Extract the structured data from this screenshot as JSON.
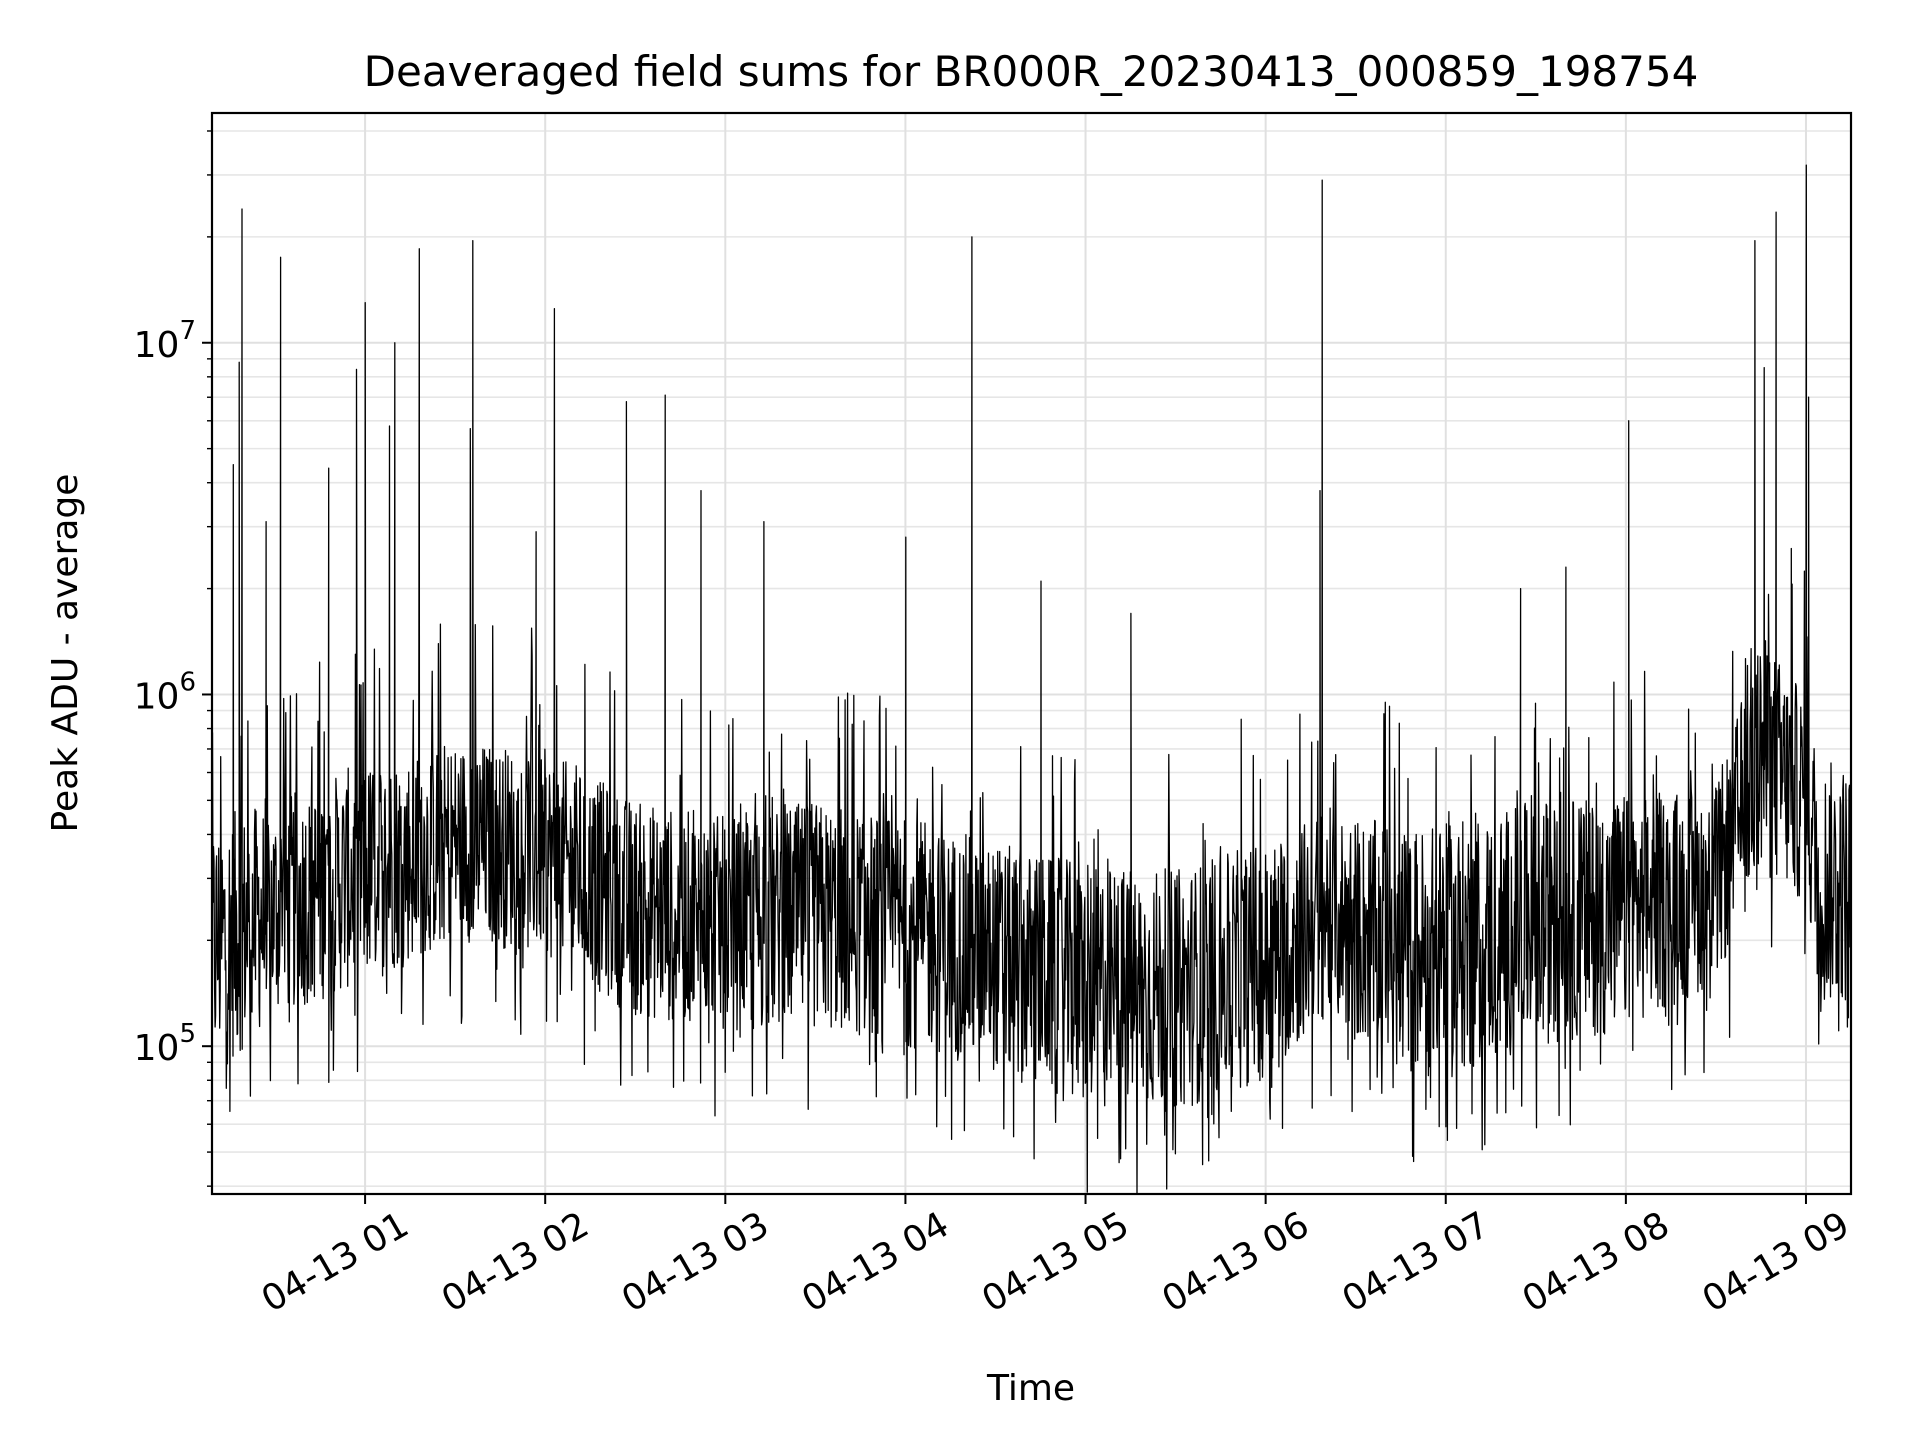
{
  "chart_data": {
    "type": "line",
    "title": "Deaveraged field sums for BR000R_20230413_000859_198754",
    "xlabel": "Time",
    "ylabel": "Peak ADU - average",
    "x_range": [
      "2023-04-13 00:09",
      "2023-04-13 09:15"
    ],
    "y_scale": "log",
    "ylim": [
      38000,
      45000000
    ],
    "grid": true,
    "x_ticks": [
      "04-13 01",
      "04-13 02",
      "04-13 03",
      "04-13 04",
      "04-13 05",
      "04-13 06",
      "04-13 07",
      "04-13 08",
      "04-13 09"
    ],
    "y_ticks": [
      {
        "value": 100000,
        "base": "10",
        "exp": "5"
      },
      {
        "value": 1000000,
        "base": "10",
        "exp": "6"
      },
      {
        "value": 10000000,
        "base": "10",
        "exp": "7"
      }
    ],
    "line_color": "#000000",
    "envelope": [
      {
        "time": "2023-04-13 00:09",
        "low": 80000,
        "high": 450000
      },
      {
        "time": "2023-04-13 00:30",
        "low": 120000,
        "high": 500000
      },
      {
        "time": "2023-04-13 01:00",
        "low": 150000,
        "high": 650000
      },
      {
        "time": "2023-04-13 01:30",
        "low": 200000,
        "high": 750000
      },
      {
        "time": "2023-04-13 02:00",
        "low": 180000,
        "high": 700000
      },
      {
        "time": "2023-04-13 02:30",
        "low": 120000,
        "high": 500000
      },
      {
        "time": "2023-04-13 03:00",
        "low": 110000,
        "high": 450000
      },
      {
        "time": "2023-04-13 03:30",
        "low": 110000,
        "high": 500000
      },
      {
        "time": "2023-04-13 04:00",
        "low": 100000,
        "high": 450000
      },
      {
        "time": "2023-04-13 04:30",
        "low": 85000,
        "high": 380000
      },
      {
        "time": "2023-04-13 05:00",
        "low": 65000,
        "high": 330000
      },
      {
        "time": "2023-04-13 05:30",
        "low": 65000,
        "high": 320000
      },
      {
        "time": "2023-04-13 06:00",
        "low": 80000,
        "high": 380000
      },
      {
        "time": "2023-04-13 06:20",
        "low": 120000,
        "high": 480000
      },
      {
        "time": "2023-04-13 06:45",
        "low": 85000,
        "high": 420000
      },
      {
        "time": "2023-04-13 07:00",
        "low": 80000,
        "high": 430000
      },
      {
        "time": "2023-04-13 07:30",
        "low": 100000,
        "high": 500000
      },
      {
        "time": "2023-04-13 08:00",
        "low": 110000,
        "high": 520000
      },
      {
        "time": "2023-04-13 08:30",
        "low": 150000,
        "high": 550000
      },
      {
        "time": "2023-04-13 08:45",
        "low": 300000,
        "high": 1500000
      },
      {
        "time": "2023-04-13 09:00",
        "low": 250000,
        "high": 1000000
      },
      {
        "time": "2023-04-13 09:05",
        "low": 130000,
        "high": 650000
      },
      {
        "time": "2023-04-13 09:15",
        "low": 130000,
        "high": 650000
      }
    ],
    "spikes": [
      {
        "time": "2023-04-13 00:16",
        "value": 4500000
      },
      {
        "time": "2023-04-13 00:18",
        "value": 8800000
      },
      {
        "time": "2023-04-13 00:19",
        "value": 24000000
      },
      {
        "time": "2023-04-13 00:27",
        "value": 3100000
      },
      {
        "time": "2023-04-13 00:32",
        "value": 17500000
      },
      {
        "time": "2023-04-13 00:48",
        "value": 4400000
      },
      {
        "time": "2023-04-13 00:57",
        "value": 8400000
      },
      {
        "time": "2023-04-13 01:00",
        "value": 13000000
      },
      {
        "time": "2023-04-13 01:08",
        "value": 5800000
      },
      {
        "time": "2023-04-13 01:10",
        "value": 10000000
      },
      {
        "time": "2023-04-13 01:18",
        "value": 18500000
      },
      {
        "time": "2023-04-13 01:35",
        "value": 5700000
      },
      {
        "time": "2023-04-13 01:36",
        "value": 19500000
      },
      {
        "time": "2023-04-13 01:57",
        "value": 2900000
      },
      {
        "time": "2023-04-13 02:03",
        "value": 12500000
      },
      {
        "time": "2023-04-13 02:27",
        "value": 6800000
      },
      {
        "time": "2023-04-13 02:40",
        "value": 7100000
      },
      {
        "time": "2023-04-13 02:52",
        "value": 3800000
      },
      {
        "time": "2023-04-13 03:13",
        "value": 3100000
      },
      {
        "time": "2023-04-13 04:00",
        "value": 2800000
      },
      {
        "time": "2023-04-13 04:22",
        "value": 20000000
      },
      {
        "time": "2023-04-13 04:45",
        "value": 2100000
      },
      {
        "time": "2023-04-13 05:15",
        "value": 1700000
      },
      {
        "time": "2023-04-13 05:52",
        "value": 850000
      },
      {
        "time": "2023-04-13 06:18",
        "value": 3800000
      },
      {
        "time": "2023-04-13 06:19",
        "value": 29000000
      },
      {
        "time": "2023-04-13 06:40",
        "value": 950000
      },
      {
        "time": "2023-04-13 07:25",
        "value": 2000000
      },
      {
        "time": "2023-04-13 07:40",
        "value": 2300000
      },
      {
        "time": "2023-04-13 08:01",
        "value": 6000000
      },
      {
        "time": "2023-04-13 08:43",
        "value": 19500000
      },
      {
        "time": "2023-04-13 08:46",
        "value": 8500000
      },
      {
        "time": "2023-04-13 08:50",
        "value": 23500000
      },
      {
        "time": "2023-04-13 08:55",
        "value": 2600000
      },
      {
        "time": "2023-04-13 09:00",
        "value": 32000000
      },
      {
        "time": "2023-04-13 09:00",
        "value": 11000000
      },
      {
        "time": "2023-04-13 09:01",
        "value": 7000000
      }
    ]
  }
}
